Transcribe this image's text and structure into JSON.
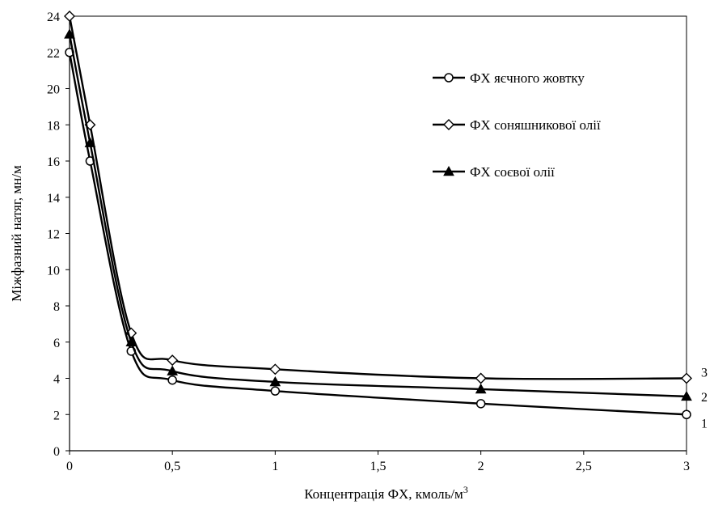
{
  "chart_data": {
    "type": "line",
    "xlabel": "Концентрація ФХ, кмоль/м",
    "xlabel_sup": "3",
    "ylabel": "Міжфазний натяг, мн/м",
    "xlim": [
      0,
      3
    ],
    "ylim": [
      0,
      24
    ],
    "x_ticks": [
      0,
      0.5,
      1,
      1.5,
      2,
      2.5,
      3
    ],
    "x_tick_labels": [
      "0",
      "0,5",
      "1",
      "1,5",
      "2",
      "2,5",
      "3"
    ],
    "y_ticks": [
      0,
      2,
      4,
      6,
      8,
      10,
      12,
      14,
      16,
      18,
      20,
      22,
      24
    ],
    "y_tick_labels": [
      "0",
      "2",
      "4",
      "6",
      "8",
      "10",
      "12",
      "14",
      "16",
      "18",
      "20",
      "22",
      "24"
    ],
    "grid": false,
    "legend_position": "top-right",
    "series": [
      {
        "name": "ФХ яєчного жовтку",
        "marker": "circle",
        "end_label": "1",
        "x": [
          0,
          0.1,
          0.3,
          0.5,
          1,
          2,
          3
        ],
        "y": [
          22,
          16,
          5.5,
          3.9,
          3.3,
          2.6,
          2.0
        ]
      },
      {
        "name": "ФХ соняшникової олії",
        "marker": "diamond",
        "end_label": "3",
        "x": [
          0,
          0.1,
          0.3,
          0.5,
          1,
          2,
          3
        ],
        "y": [
          24,
          18,
          6.5,
          5.0,
          4.5,
          4.0,
          4.0
        ]
      },
      {
        "name": "ФХ соєвої олії",
        "marker": "triangle",
        "end_label": "2",
        "x": [
          0,
          0.1,
          0.3,
          0.5,
          1,
          2,
          3
        ],
        "y": [
          23,
          17,
          6.0,
          4.4,
          3.8,
          3.4,
          3.0
        ]
      }
    ]
  }
}
